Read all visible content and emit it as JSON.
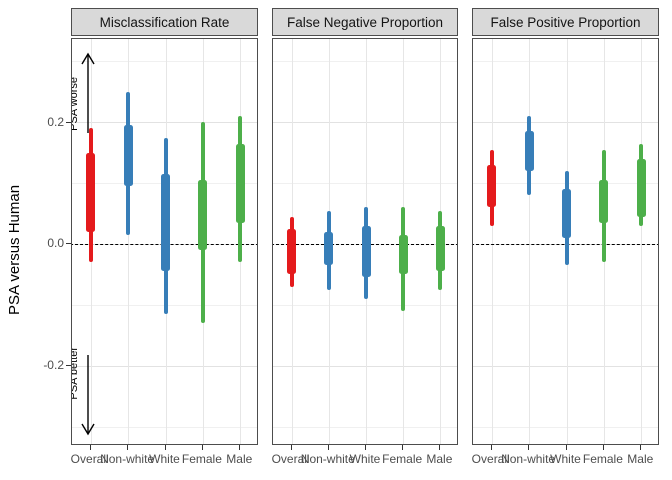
{
  "chart_data": {
    "type": "interval",
    "description": "Faceted credible-interval plot of PSA-minus-human differences; thick segment = inner interval, thin segment = outer interval",
    "categories": [
      "Overall",
      "Non-white",
      "White",
      "Female",
      "Male"
    ],
    "group_colors": [
      "#E41A1C",
      "#377EB8",
      "#377EB8",
      "#4DAF4A",
      "#4DAF4A"
    ],
    "ylabel": "PSA versus Human",
    "ylim": [
      -0.337,
      0.337
    ],
    "yticks": [
      0.2,
      0.0,
      -0.2
    ],
    "ytick_labels": [
      "0.2",
      "0.0",
      "-0.2"
    ],
    "minor_gridlines": [
      0.3,
      0.1,
      -0.1,
      -0.3
    ],
    "reference_line_y": 0,
    "grid": true,
    "legend": false,
    "facets": [
      {
        "title": "Misclassification Rate",
        "series": [
          {
            "group": "Overall",
            "outer": [
              -0.03,
              0.19
            ],
            "inner": [
              0.02,
              0.15
            ]
          },
          {
            "group": "Non-white",
            "outer": [
              0.015,
              0.25
            ],
            "inner": [
              0.095,
              0.195
            ]
          },
          {
            "group": "White",
            "outer": [
              -0.115,
              0.175
            ],
            "inner": [
              -0.045,
              0.115
            ]
          },
          {
            "group": "Female",
            "outer": [
              -0.13,
              0.2
            ],
            "inner": [
              -0.01,
              0.105
            ]
          },
          {
            "group": "Male",
            "outer": [
              -0.03,
              0.21
            ],
            "inner": [
              0.035,
              0.165
            ]
          }
        ]
      },
      {
        "title": "False Negative Proportion",
        "series": [
          {
            "group": "Overall",
            "outer": [
              -0.07,
              0.045
            ],
            "inner": [
              -0.05,
              0.025
            ]
          },
          {
            "group": "Non-white",
            "outer": [
              -0.075,
              0.055
            ],
            "inner": [
              -0.035,
              0.02
            ]
          },
          {
            "group": "White",
            "outer": [
              -0.09,
              0.06
            ],
            "inner": [
              -0.055,
              0.03
            ]
          },
          {
            "group": "Female",
            "outer": [
              -0.11,
              0.06
            ],
            "inner": [
              -0.05,
              0.015
            ]
          },
          {
            "group": "Male",
            "outer": [
              -0.075,
              0.055
            ],
            "inner": [
              -0.045,
              0.03
            ]
          }
        ]
      },
      {
        "title": "False Positive Proportion",
        "series": [
          {
            "group": "Overall",
            "outer": [
              0.03,
              0.155
            ],
            "inner": [
              0.06,
              0.13
            ]
          },
          {
            "group": "Non-white",
            "outer": [
              0.08,
              0.21
            ],
            "inner": [
              0.12,
              0.185
            ]
          },
          {
            "group": "White",
            "outer": [
              -0.035,
              0.12
            ],
            "inner": [
              0.01,
              0.09
            ]
          },
          {
            "group": "Female",
            "outer": [
              -0.03,
              0.155
            ],
            "inner": [
              0.035,
              0.105
            ]
          },
          {
            "group": "Male",
            "outer": [
              0.03,
              0.165
            ],
            "inner": [
              0.045,
              0.14
            ]
          }
        ]
      }
    ],
    "annotations": [
      {
        "text": "PSA worse",
        "arrow": "up"
      },
      {
        "text": "PSA better",
        "arrow": "down"
      }
    ],
    "colors": {
      "strip_bg": "#D9D9D9",
      "panel_border": "#4D4D4D",
      "grid_major": "#E2E2E2",
      "grid_minor": "#F0F0F0",
      "reference_line": "#000000",
      "axis_text": "#4D4D4D"
    }
  }
}
